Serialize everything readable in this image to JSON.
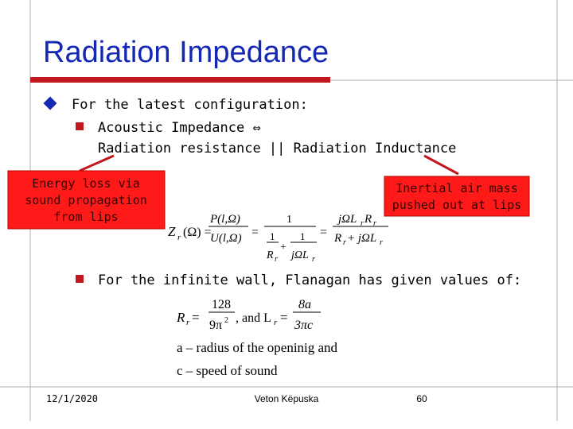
{
  "title": "Radiation Impedance",
  "bullet1": "For the latest configuration:",
  "sub1": [
    "Acoustic Impedance ⇔",
    "Radiation resistance || Radiation Inductance"
  ],
  "callout_left": [
    "Energy loss via",
    "sound propagation",
    "from lips"
  ],
  "callout_right": [
    "Inertial air mass",
    "pushed out at lips"
  ],
  "formula1": [
    "Z",
    "r",
    "(Ω) =",
    "P(l,Ω)",
    "U(l,Ω)",
    "=",
    "1",
    "1",
    "R",
    "r",
    "+",
    "1",
    "jΩL",
    "r",
    "=",
    "jΩL",
    "r",
    "R",
    "r",
    "R",
    "r",
    "+ jΩL",
    "r"
  ],
  "sub2": "For the infinite wall, Flanagan has given values of:",
  "formula2": [
    "R",
    "r",
    "=",
    "128",
    "9π",
    "2",
    ", and L",
    "r",
    "=",
    "8a",
    "3πc"
  ],
  "definitions": [
    "a – radius of the openinig and",
    "c – speed of sound"
  ],
  "footer": {
    "date": "12/1/2020",
    "author": "Veton Këpuska",
    "page": "60"
  }
}
